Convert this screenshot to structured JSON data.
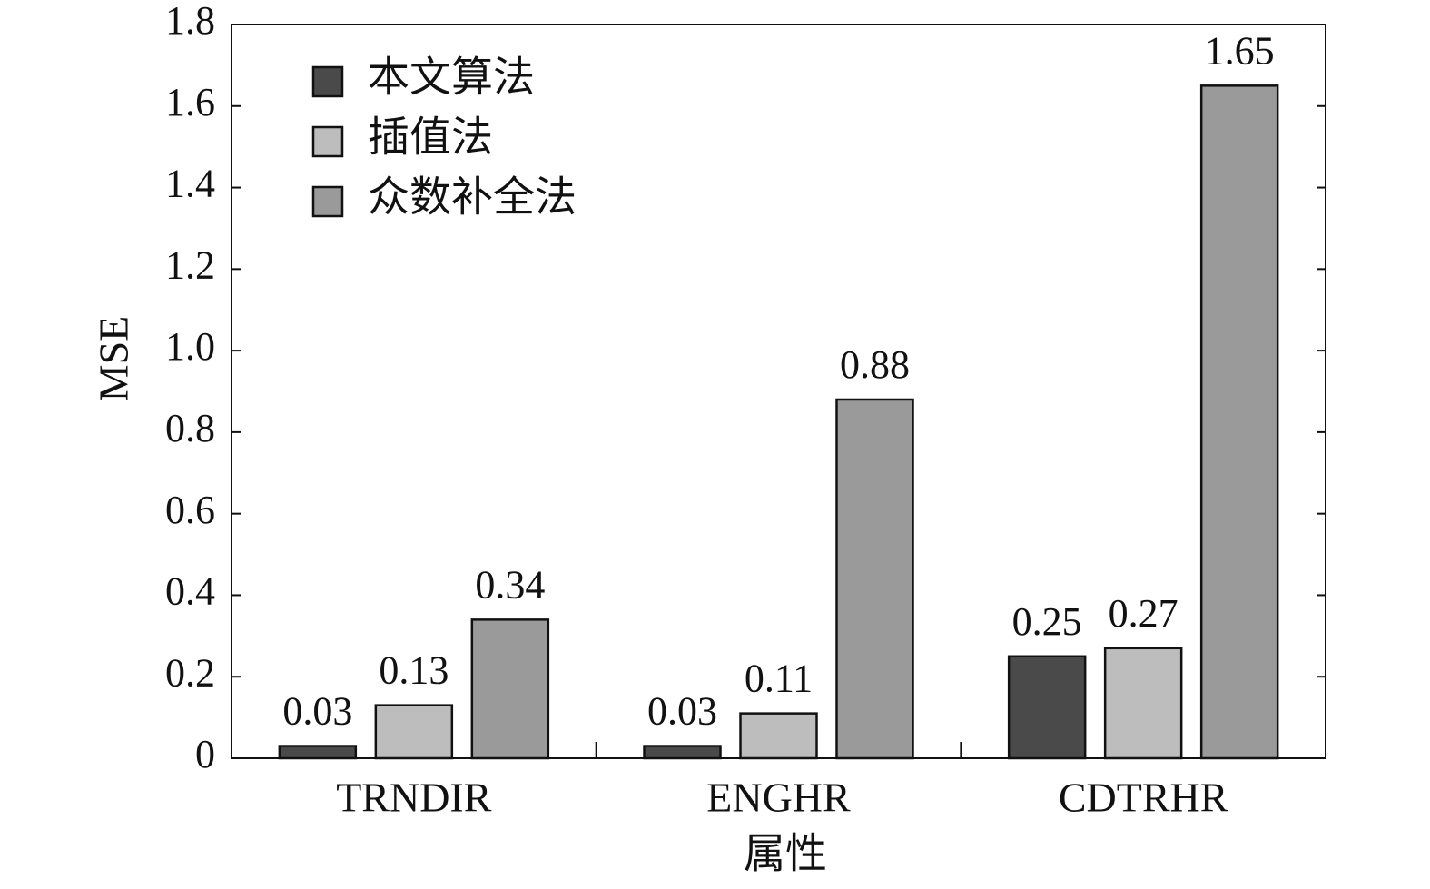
{
  "chart_data": {
    "type": "bar",
    "x_label": "属性",
    "y_label": "MSE",
    "categories": [
      "TRNDIR",
      "ENGHR",
      "CDTRHR"
    ],
    "series": [
      {
        "name": "本文算法",
        "color": "#4a4a4a",
        "values": [
          0.03,
          0.03,
          0.25
        ]
      },
      {
        "name": "插值法",
        "color": "#bdbdbd",
        "values": [
          0.13,
          0.11,
          0.27
        ]
      },
      {
        "name": "众数补全法",
        "color": "#9a9a9a",
        "values": [
          0.34,
          0.88,
          1.65
        ]
      }
    ],
    "ylim": [
      0,
      1.8
    ],
    "yticks": [
      0,
      0.2,
      0.4,
      0.6,
      0.8,
      {
        "value": 1,
        "label": "1.0"
      },
      1.2,
      1.4,
      1.6,
      1.8
    ],
    "legend": "upper left",
    "grid": false
  }
}
